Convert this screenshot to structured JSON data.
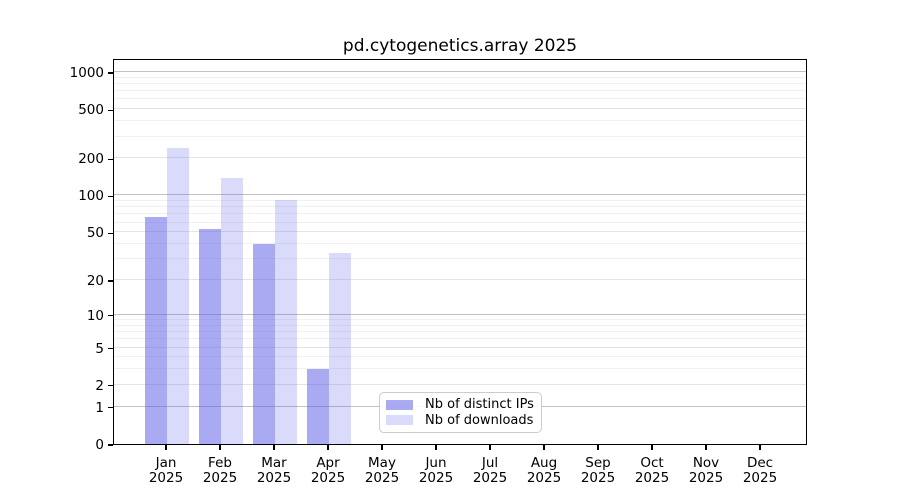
{
  "chart_data": {
    "type": "bar",
    "title": "pd.cytogenetics.array 2025",
    "categories": [
      "Jan",
      "Feb",
      "Mar",
      "Apr",
      "May",
      "Jun",
      "Jul",
      "Aug",
      "Sep",
      "Oct",
      "Nov",
      "Dec"
    ],
    "x_axis": {
      "tick_label_line2": "2025"
    },
    "series": [
      {
        "name": "Nb of distinct IPs",
        "color": "rgba(85,85,230,0.50)",
        "color_on_white": "#aaaaf2",
        "values": [
          67,
          53,
          40,
          3,
          0,
          0,
          0,
          0,
          0,
          0,
          0,
          0
        ]
      },
      {
        "name": "Nb of downloads",
        "color": "rgba(85,85,230,0.22)",
        "color_on_white": "#dcdcf9",
        "values": [
          242,
          140,
          92,
          34,
          0,
          0,
          0,
          0,
          0,
          0,
          0,
          0
        ]
      }
    ],
    "y_axis": {
      "scale": "log10(value+1)",
      "ticks": [
        1000,
        500,
        200,
        100,
        50,
        20,
        10,
        5,
        2,
        1,
        0
      ],
      "range_top": 1300
    },
    "grid": {
      "horizontal": true,
      "decade_lines": [
        1,
        10,
        100,
        1000
      ],
      "mid_lines": [
        2,
        5,
        20,
        50,
        200,
        500
      ],
      "minor_lines": [
        3,
        4,
        6,
        7,
        8,
        9,
        30,
        40,
        60,
        70,
        80,
        90,
        300,
        400,
        600,
        700,
        800,
        900
      ]
    },
    "legend": {
      "position": "lower-center",
      "entries": [
        "Nb of distinct IPs",
        "Nb of downloads"
      ]
    }
  }
}
